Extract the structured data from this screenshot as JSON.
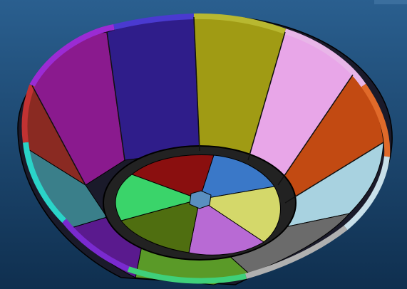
{
  "viewport": {
    "background_top": "#2a5f8f",
    "background_bottom": "#0f2f4f"
  },
  "model": {
    "segments": [
      {
        "name": "outer-segment-1",
        "color": "#2f1d8a"
      },
      {
        "name": "outer-segment-2",
        "color": "#a09b14"
      },
      {
        "name": "outer-segment-3",
        "color": "#e8a6e8"
      },
      {
        "name": "outer-segment-4",
        "color": "#c24a12"
      },
      {
        "name": "outer-segment-5",
        "color": "#a8d2e0"
      },
      {
        "name": "outer-segment-6",
        "color": "#6b6b6b"
      },
      {
        "name": "outer-segment-7",
        "color": "#8e8e12"
      },
      {
        "name": "outer-segment-8",
        "color": "#6a2070"
      },
      {
        "name": "outer-segment-9",
        "color": "#3fb4b0"
      },
      {
        "name": "outer-segment-10",
        "color": "#8a2a22"
      },
      {
        "name": "outer-segment-11",
        "color": "#7e1a8a"
      },
      {
        "name": "outer-segment-12",
        "color": "#8a1a8e"
      }
    ],
    "inner_segments": [
      {
        "name": "inner-segment-red",
        "color": "#8a0f0f"
      },
      {
        "name": "inner-segment-blue",
        "color": "#3a78c8"
      },
      {
        "name": "inner-segment-yellow",
        "color": "#d4d86a"
      },
      {
        "name": "inner-segment-violet",
        "color": "#b86ad4"
      },
      {
        "name": "inner-segment-olive",
        "color": "#4f6e10"
      },
      {
        "name": "inner-segment-green",
        "color": "#3ad46a"
      }
    ],
    "rim_color": "#3fd07a",
    "rim_segments": [
      "#c23232",
      "#9b2bd4",
      "#2ad4c8",
      "#b8d830",
      "#c8c8c8",
      "#5a5ad0"
    ]
  }
}
